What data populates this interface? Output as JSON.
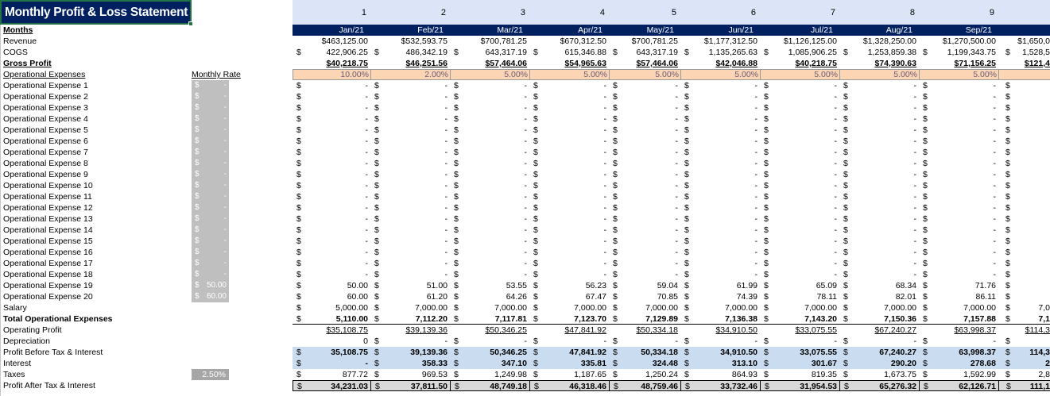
{
  "title": "Monthly Profit & Loss Statement",
  "colors": {
    "navy": "#002060",
    "header_light": "#dbe5f7",
    "rate_peach": "#fcd5b4",
    "highlight_blue": "#cadcf0",
    "total_grey": "#d9d9d9"
  },
  "months_label": "Months",
  "monthly_rate_label": "Monthly Rate",
  "column_numbers": [
    "1",
    "2",
    "3",
    "4",
    "5",
    "6",
    "7",
    "8",
    "9"
  ],
  "months": [
    "Jan/21",
    "Feb/21",
    "Mar/21",
    "Apr/21",
    "May/21",
    "Jun/21",
    "Jul/21",
    "Aug/21",
    "Sep/21"
  ],
  "rows": [
    {
      "label": "Revenue",
      "values": [
        "$463,125.00",
        "$532,593.75",
        "$700,781.25",
        "$670,312.50",
        "$700,781.25",
        "$1,177,312.50",
        "$1,126,125.00",
        "$1,328,250.00",
        "$1,270,500.00"
      ],
      "oct": "$1,650,0"
    },
    {
      "label": "COGS",
      "sym": "$",
      "values": [
        "422,906.25",
        "486,342.19",
        "643,317.19",
        "615,346.88",
        "643,317.19",
        "1,135,265.63",
        "1,085,906.25",
        "1,253,859.38",
        "1,199,343.75"
      ],
      "oct": "1,528,5"
    },
    {
      "label": "Gross Profit",
      "style": "gross",
      "values": [
        "$40,218.75",
        "$46,251.56",
        "$57,464.06",
        "$54,965.63",
        "$57,464.06",
        "$42,046.88",
        "$40,218.75",
        "$74,390.63",
        "$71,156.25"
      ],
      "oct": "$121,4"
    },
    {
      "label": "Operational Expenses",
      "style": "opex",
      "rate": "Monthly Rate",
      "rates": [
        "10.00%",
        "2.00%",
        "5.00%",
        "5.00%",
        "5.00%",
        "5.00%",
        "5.00%",
        "5.00%",
        "5.00%"
      ]
    },
    {
      "label": "Operational Expense 1",
      "sym": "$",
      "rate_sym": "$",
      "rate_val": "-",
      "values": [
        "-",
        "-",
        "-",
        "-",
        "-",
        "-",
        "-",
        "-",
        "-"
      ]
    },
    {
      "label": "Operational Expense 2",
      "sym": "$",
      "rate_sym": "$",
      "rate_val": "-",
      "values": [
        "-",
        "-",
        "-",
        "-",
        "-",
        "-",
        "-",
        "-",
        "-"
      ]
    },
    {
      "label": "Operational Expense 3",
      "sym": "$",
      "rate_sym": "$",
      "rate_val": "-",
      "values": [
        "-",
        "-",
        "-",
        "-",
        "-",
        "-",
        "-",
        "-",
        "-"
      ]
    },
    {
      "label": "Operational Expense 4",
      "sym": "$",
      "rate_sym": "$",
      "rate_val": "-",
      "values": [
        "-",
        "-",
        "-",
        "-",
        "-",
        "-",
        "-",
        "-",
        "-"
      ]
    },
    {
      "label": "Operational Expense 5",
      "sym": "$",
      "rate_sym": "$",
      "rate_val": "-",
      "values": [
        "-",
        "-",
        "-",
        "-",
        "-",
        "-",
        "-",
        "-",
        "-"
      ]
    },
    {
      "label": "Operational Expense 6",
      "sym": "$",
      "rate_sym": "$",
      "rate_val": "-",
      "values": [
        "-",
        "-",
        "-",
        "-",
        "-",
        "-",
        "-",
        "-",
        "-"
      ]
    },
    {
      "label": "Operational Expense 7",
      "sym": "$",
      "rate_sym": "$",
      "rate_val": "-",
      "values": [
        "-",
        "-",
        "-",
        "-",
        "-",
        "-",
        "-",
        "-",
        "-"
      ]
    },
    {
      "label": "Operational Expense 8",
      "sym": "$",
      "rate_sym": "$",
      "rate_val": "-",
      "values": [
        "-",
        "-",
        "-",
        "-",
        "-",
        "-",
        "-",
        "-",
        "-"
      ]
    },
    {
      "label": "Operational Expense 9",
      "sym": "$",
      "rate_sym": "$",
      "rate_val": "-",
      "values": [
        "-",
        "-",
        "-",
        "-",
        "-",
        "-",
        "-",
        "-",
        "-"
      ]
    },
    {
      "label": "Operational Expense 10",
      "sym": "$",
      "rate_sym": "$",
      "rate_val": "-",
      "values": [
        "-",
        "-",
        "-",
        "-",
        "-",
        "-",
        "-",
        "-",
        "-"
      ]
    },
    {
      "label": "Operational Expense 11",
      "sym": "$",
      "rate_sym": "$",
      "rate_val": "-",
      "values": [
        "-",
        "-",
        "-",
        "-",
        "-",
        "-",
        "-",
        "-",
        "-"
      ]
    },
    {
      "label": "Operational Expense 12",
      "sym": "$",
      "rate_sym": "$",
      "rate_val": "-",
      "values": [
        "-",
        "-",
        "-",
        "-",
        "-",
        "-",
        "-",
        "-",
        "-"
      ]
    },
    {
      "label": "Operational Expense 13",
      "sym": "$",
      "rate_sym": "$",
      "rate_val": "-",
      "values": [
        "-",
        "-",
        "-",
        "-",
        "-",
        "-",
        "-",
        "-",
        "-"
      ]
    },
    {
      "label": "Operational Expense 14",
      "sym": "$",
      "rate_sym": "$",
      "rate_val": "-",
      "values": [
        "-",
        "-",
        "-",
        "-",
        "-",
        "-",
        "-",
        "-",
        "-"
      ]
    },
    {
      "label": "Operational Expense 15",
      "sym": "$",
      "rate_sym": "$",
      "rate_val": "-",
      "values": [
        "-",
        "-",
        "-",
        "-",
        "-",
        "-",
        "-",
        "-",
        "-"
      ]
    },
    {
      "label": "Operational Expense 16",
      "sym": "$",
      "rate_sym": "$",
      "rate_val": "-",
      "values": [
        "-",
        "-",
        "-",
        "-",
        "-",
        "-",
        "-",
        "-",
        "-"
      ]
    },
    {
      "label": "Operational Expense 17",
      "sym": "$",
      "rate_sym": "$",
      "rate_val": "-",
      "values": [
        "-",
        "-",
        "-",
        "-",
        "-",
        "-",
        "-",
        "-",
        "-"
      ]
    },
    {
      "label": "Operational Expense 18",
      "sym": "$",
      "rate_sym": "$",
      "rate_val": "-",
      "values": [
        "-",
        "-",
        "-",
        "-",
        "-",
        "-",
        "-",
        "-",
        "-"
      ]
    },
    {
      "label": "Operational Expense 19",
      "sym": "$",
      "rate_sym": "$",
      "rate_val": "50.00",
      "values": [
        "50.00",
        "51.00",
        "53.55",
        "56.23",
        "59.04",
        "61.99",
        "65.09",
        "68.34",
        "71.76"
      ]
    },
    {
      "label": "Operational Expense 20",
      "sym": "$",
      "rate_sym": "$",
      "rate_val": "60.00",
      "values": [
        "60.00",
        "61.20",
        "64.26",
        "67.47",
        "70.85",
        "74.39",
        "78.11",
        "82.01",
        "86.11"
      ]
    },
    {
      "label": "Salary",
      "sym": "$",
      "values": [
        "5,000.00",
        "7,000.00",
        "7,000.00",
        "7,000.00",
        "7,000.00",
        "7,000.00",
        "7,000.00",
        "7,000.00",
        "7,000.00"
      ],
      "oct": "7,0"
    },
    {
      "label": "Total Operational Expenses",
      "style": "tot",
      "sym": "$",
      "values": [
        "5,110.00",
        "7,112.20",
        "7,117.81",
        "7,123.70",
        "7,129.89",
        "7,136.38",
        "7,143.20",
        "7,150.36",
        "7,157.88"
      ],
      "oct": "7,1"
    },
    {
      "label": "Operating Profit",
      "style": "opprofit",
      "values": [
        "$35,108.75",
        "$39,139.36",
        "$50,346.25",
        "$47,841.92",
        "$50,334.18",
        "$34,910.50",
        "$33,075.55",
        "$67,240.27",
        "$63,998.37"
      ],
      "oct": "$114,3"
    },
    {
      "label": "Depreciation",
      "sym": [
        "",
        "$",
        "$",
        "$",
        "$",
        "$",
        "$",
        "$",
        "$"
      ],
      "values": [
        "0",
        "-",
        "-",
        "-",
        "-",
        "-",
        "-",
        "-",
        "-"
      ]
    },
    {
      "label": "Profit Before Tax & Interest",
      "style": "blue",
      "sym": "$",
      "values": [
        "35,108.75",
        "39,139.36",
        "50,346.25",
        "47,841.92",
        "50,334.18",
        "34,910.50",
        "33,075.55",
        "67,240.27",
        "63,998.37"
      ],
      "oct": "114,3"
    },
    {
      "label": "Interest",
      "style": "blue",
      "sym": "$",
      "values": [
        "-",
        "358.33",
        "347.10",
        "335.81",
        "324.48",
        "313.10",
        "301.67",
        "290.20",
        "278.68"
      ],
      "oct": "2"
    },
    {
      "label": "Taxes",
      "sym": "$",
      "tax_rate": "2.50%",
      "values": [
        "877.72",
        "969.53",
        "1,249.98",
        "1,187.65",
        "1,250.24",
        "864.93",
        "819.35",
        "1,673.75",
        "1,592.99"
      ],
      "oct": "2,8"
    },
    {
      "label": "Profit After Tax & Interest",
      "style": "pati",
      "sym": "$",
      "values": [
        "34,231.03",
        "37,811.50",
        "48,749.18",
        "46,318.46",
        "48,759.46",
        "33,732.46",
        "31,954.53",
        "65,276.32",
        "62,126.71"
      ],
      "oct": "111,1"
    }
  ]
}
